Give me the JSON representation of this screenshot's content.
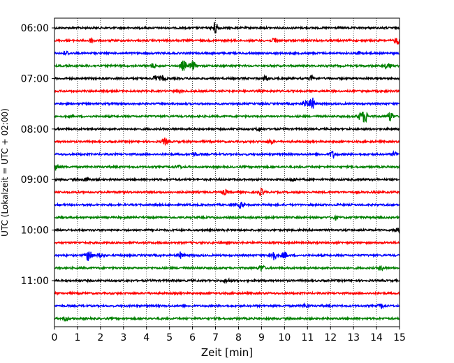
{
  "chart_data": {
    "type": "line",
    "xlabel": "Zeit  [min]",
    "ylabel": "UTC (Lokalzeit = UTC + 02:00)",
    "xlim": [
      0,
      15
    ],
    "x_ticks": [
      0,
      1,
      2,
      3,
      4,
      5,
      6,
      7,
      8,
      9,
      10,
      11,
      12,
      13,
      14,
      15
    ],
    "y_ticks": [
      "06:00",
      "07:00",
      "08:00",
      "09:00",
      "10:00",
      "11:00"
    ],
    "grid": "vertical dotted",
    "trace_colors": [
      "#000000",
      "#ff0000",
      "#0000ff",
      "#008000"
    ],
    "series": [
      {
        "start": "06:00",
        "color": "#000000",
        "events": [
          {
            "x": 7.0,
            "amp": 1.0
          }
        ]
      },
      {
        "start": "06:15",
        "color": "#ff0000",
        "events": [
          {
            "x": 1.6,
            "amp": 0.3
          },
          {
            "x": 9.6,
            "amp": 0.45
          },
          {
            "x": 14.9,
            "amp": 0.55
          }
        ]
      },
      {
        "start": "06:30",
        "color": "#0000ff",
        "events": [
          {
            "x": 0.5,
            "amp": 0.3
          },
          {
            "x": 13.3,
            "amp": 0.25
          }
        ]
      },
      {
        "start": "06:45",
        "color": "#008000",
        "events": [
          {
            "x": 4.3,
            "amp": 0.35
          },
          {
            "x": 5.6,
            "amp": 0.8
          },
          {
            "x": 6.0,
            "amp": 0.7
          },
          {
            "x": 14.5,
            "amp": 0.6
          }
        ]
      },
      {
        "start": "07:00",
        "color": "#000000",
        "events": [
          {
            "x": 4.4,
            "amp": 0.4
          },
          {
            "x": 4.7,
            "amp": 0.4
          },
          {
            "x": 9.2,
            "amp": 0.35
          },
          {
            "x": 11.2,
            "amp": 0.4
          }
        ]
      },
      {
        "start": "07:15",
        "color": "#ff0000",
        "events": [
          {
            "x": 5.4,
            "amp": 0.2
          }
        ]
      },
      {
        "start": "07:30",
        "color": "#0000ff",
        "events": [
          {
            "x": 10.9,
            "amp": 0.5
          },
          {
            "x": 11.2,
            "amp": 0.9
          }
        ]
      },
      {
        "start": "07:45",
        "color": "#008000",
        "events": [
          {
            "x": 13.5,
            "amp": 0.9
          },
          {
            "x": 13.3,
            "amp": 0.5
          },
          {
            "x": 14.6,
            "amp": 0.7
          }
        ]
      },
      {
        "start": "08:00",
        "color": "#000000",
        "events": [
          {
            "x": 8.9,
            "amp": 0.25
          }
        ]
      },
      {
        "start": "08:15",
        "color": "#ff0000",
        "events": [
          {
            "x": 4.8,
            "amp": 0.5
          },
          {
            "x": 9.4,
            "amp": 0.3
          }
        ]
      },
      {
        "start": "08:30",
        "color": "#0000ff",
        "events": [
          {
            "x": 6.1,
            "amp": 0.25
          },
          {
            "x": 12.1,
            "amp": 0.5
          },
          {
            "x": 14.8,
            "amp": 0.4
          }
        ]
      },
      {
        "start": "08:45",
        "color": "#008000",
        "events": [
          {
            "x": 0.05,
            "amp": 0.7
          },
          {
            "x": 5.4,
            "amp": 0.25
          }
        ]
      },
      {
        "start": "09:00",
        "color": "#000000",
        "events": [
          {
            "x": 1.4,
            "amp": 0.35
          },
          {
            "x": 10.4,
            "amp": 0.25
          }
        ]
      },
      {
        "start": "09:15",
        "color": "#ff0000",
        "events": [
          {
            "x": 7.4,
            "amp": 0.35
          },
          {
            "x": 9.0,
            "amp": 0.45
          }
        ]
      },
      {
        "start": "09:30",
        "color": "#0000ff",
        "events": [
          {
            "x": 8.1,
            "amp": 0.45
          }
        ]
      },
      {
        "start": "09:45",
        "color": "#008000",
        "events": [
          {
            "x": 12.2,
            "amp": 0.3
          }
        ]
      },
      {
        "start": "10:00",
        "color": "#000000",
        "events": [
          {
            "x": 14.9,
            "amp": 0.35
          }
        ]
      },
      {
        "start": "10:15",
        "color": "#ff0000",
        "events": []
      },
      {
        "start": "10:30",
        "color": "#0000ff",
        "events": [
          {
            "x": 1.5,
            "amp": 1.0
          },
          {
            "x": 2.0,
            "amp": 0.4
          },
          {
            "x": 5.5,
            "amp": 0.5
          },
          {
            "x": 9.5,
            "amp": 0.9
          },
          {
            "x": 10.0,
            "amp": 0.5
          }
        ]
      },
      {
        "start": "10:45",
        "color": "#008000",
        "events": [
          {
            "x": 9.0,
            "amp": 0.5
          },
          {
            "x": 14.2,
            "amp": 0.3
          }
        ]
      },
      {
        "start": "11:00",
        "color": "#000000",
        "events": [
          {
            "x": 7.5,
            "amp": 0.3
          }
        ]
      },
      {
        "start": "11:15",
        "color": "#ff0000",
        "events": []
      },
      {
        "start": "11:30",
        "color": "#0000ff",
        "events": [
          {
            "x": 10.9,
            "amp": 0.3
          },
          {
            "x": 14.2,
            "amp": 0.3
          }
        ]
      },
      {
        "start": "11:45",
        "color": "#008000",
        "events": [
          {
            "x": 0.5,
            "amp": 0.35
          }
        ]
      }
    ]
  }
}
